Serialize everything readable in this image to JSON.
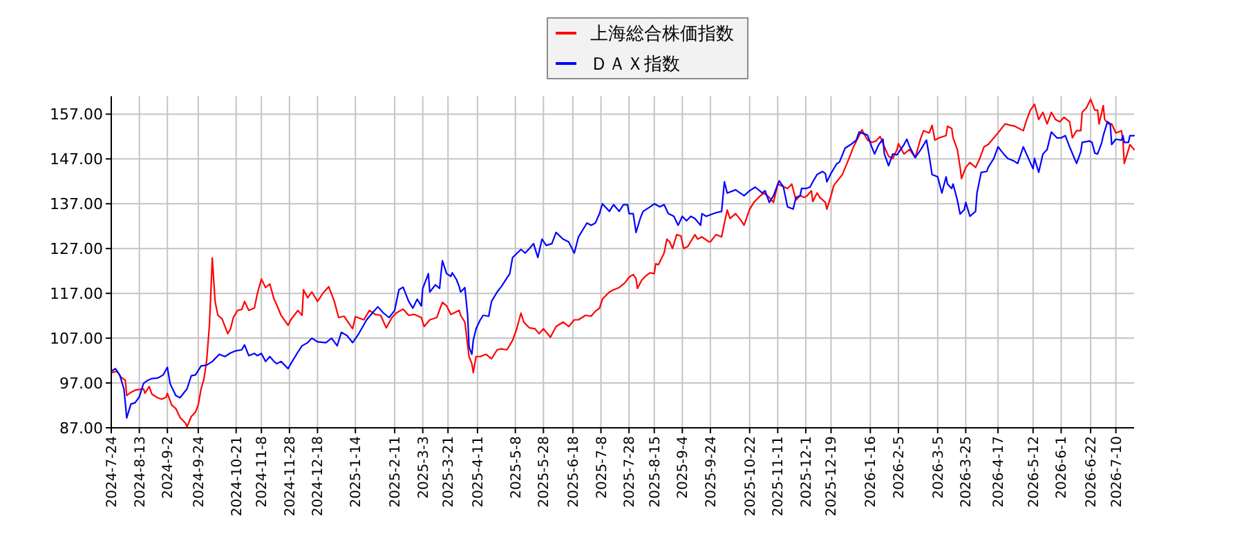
{
  "chart_data": {
    "type": "line",
    "series": [
      {
        "name": "上海総合株価指数",
        "color": "#ff0000",
        "x": [
          "2024-07-24",
          "2024-07-28",
          "2024-07-31",
          "2024-08-03",
          "2024-08-04",
          "2024-08-07",
          "2024-08-10",
          "2024-08-16",
          "2024-08-17",
          "2024-08-20",
          "2024-08-22",
          "2024-08-26",
          "2024-08-29",
          "2024-09-01",
          "2024-09-02",
          "2024-09-05",
          "2024-09-08",
          "2024-09-11",
          "2024-09-15",
          "2024-09-16",
          "2024-09-19",
          "2024-09-22",
          "2024-09-24",
          "2024-09-26",
          "2024-09-28",
          "2024-09-30",
          "2024-10-02",
          "2024-10-04",
          "2024-10-06",
          "2024-10-08",
          "2024-10-11",
          "2024-10-15",
          "2024-10-17",
          "2024-10-19",
          "2024-10-22",
          "2024-10-25",
          "2024-10-27",
          "2024-10-30",
          "2024-11-03",
          "2024-11-05",
          "2024-11-08",
          "2024-11-11",
          "2024-11-14",
          "2024-11-17",
          "2024-11-19",
          "2024-11-22",
          "2024-11-27",
          "2024-11-29",
          "2024-12-04",
          "2024-12-07",
          "2024-12-08",
          "2024-12-11",
          "2024-12-14",
          "2024-12-18",
          "2024-12-22",
          "2024-12-26",
          "2024-12-30",
          "2025-01-02",
          "2025-01-06",
          "2025-01-12",
          "2025-01-14",
          "2025-01-20",
          "2025-01-24",
          "2025-01-28",
          "2025-02-01",
          "2025-02-05",
          "2025-02-09",
          "2025-02-12",
          "2025-02-17",
          "2025-02-21",
          "2025-02-25",
          "2025-03-02",
          "2025-03-04",
          "2025-03-08",
          "2025-03-13",
          "2025-03-17",
          "2025-03-20",
          "2025-03-23",
          "2025-03-29",
          "2025-03-30",
          "2025-04-02",
          "2025-04-04",
          "2025-04-05",
          "2025-04-07",
          "2025-04-08",
          "2025-04-10",
          "2025-04-13",
          "2025-04-17",
          "2025-04-21",
          "2025-04-25",
          "2025-04-28",
          "2025-05-02",
          "2025-05-06",
          "2025-05-09",
          "2025-05-12",
          "2025-05-14",
          "2025-05-18",
          "2025-05-22",
          "2025-05-25",
          "2025-05-28",
          "2025-06-02",
          "2025-06-06",
          "2025-06-11",
          "2025-06-15",
          "2025-06-19",
          "2025-06-22",
          "2025-06-27",
          "2025-07-01",
          "2025-07-04",
          "2025-07-07",
          "2025-07-09",
          "2025-07-14",
          "2025-07-17",
          "2025-07-21",
          "2025-07-25",
          "2025-07-28",
          "2025-07-31",
          "2025-08-02",
          "2025-08-03",
          "2025-08-06",
          "2025-08-09",
          "2025-08-12",
          "2025-08-15",
          "2025-08-16",
          "2025-08-18",
          "2025-08-22",
          "2025-08-24",
          "2025-08-26",
          "2025-08-28",
          "2025-08-31",
          "2025-09-03",
          "2025-09-05",
          "2025-09-08",
          "2025-09-13",
          "2025-09-15",
          "2025-09-18",
          "2025-09-23",
          "2025-09-24",
          "2025-09-28",
          "2025-10-02",
          "2025-10-04",
          "2025-10-06",
          "2025-10-08",
          "2025-10-12",
          "2025-10-16",
          "2025-10-18",
          "2025-10-22",
          "2025-10-25",
          "2025-10-29",
          "2025-11-01",
          "2025-11-05",
          "2025-11-08",
          "2025-11-11",
          "2025-11-15",
          "2025-11-18",
          "2025-11-21",
          "2025-11-24",
          "2025-11-27",
          "2025-11-30",
          "2025-12-02",
          "2025-12-05",
          "2025-12-06",
          "2025-12-09",
          "2025-12-11",
          "2025-12-15",
          "2025-12-16",
          "2025-12-19",
          "2025-12-21",
          "2025-12-27",
          "2025-12-31",
          "2026-01-04",
          "2026-01-08",
          "2026-01-10",
          "2026-01-14",
          "2026-01-17",
          "2026-01-20",
          "2026-01-23",
          "2026-01-26",
          "2026-01-29",
          "2026-02-01",
          "2026-02-04",
          "2026-02-05",
          "2026-02-09",
          "2026-02-13",
          "2026-02-17",
          "2026-02-21",
          "2026-02-23",
          "2026-02-27",
          "2026-03-01",
          "2026-03-03",
          "2026-03-06",
          "2026-03-11",
          "2026-03-12",
          "2026-03-15",
          "2026-03-16",
          "2026-03-19",
          "2026-03-21",
          "2026-03-22",
          "2026-03-25",
          "2026-03-28",
          "2026-04-01",
          "2026-04-04",
          "2026-04-07",
          "2026-04-10",
          "2026-04-14",
          "2026-04-17",
          "2026-04-22",
          "2026-04-26",
          "2026-04-29",
          "2026-05-05",
          "2026-05-07",
          "2026-05-10",
          "2026-05-13",
          "2026-05-16",
          "2026-05-19",
          "2026-05-22",
          "2026-05-25",
          "2026-05-28",
          "2026-05-31",
          "2026-06-03",
          "2026-06-07",
          "2026-06-09",
          "2026-06-12",
          "2026-06-15",
          "2026-06-16",
          "2026-06-19",
          "2026-06-22",
          "2026-06-25",
          "2026-06-27",
          "2026-06-28",
          "2026-07-01",
          "2026-07-02",
          "2026-07-05",
          "2026-07-07",
          "2026-07-10",
          "2026-07-14",
          "2026-07-15",
          "2026-07-16",
          "2026-07-19",
          "2026-07-20",
          "2026-07-23"
        ],
        "values": [
          99.3,
          99.6,
          98.3,
          97.6,
          94.2,
          94.9,
          95.4,
          95.7,
          94.7,
          96.2,
          94.5,
          93.7,
          93.4,
          93.8,
          94.7,
          92.1,
          91.3,
          89.3,
          88.0,
          87.2,
          89.5,
          90.5,
          92.1,
          95.7,
          97.8,
          102.0,
          110.1,
          124.9,
          115.2,
          112.1,
          111.3,
          108.0,
          109.1,
          111.6,
          113.2,
          113.4,
          115.2,
          113.2,
          113.7,
          116.8,
          120.2,
          118.3,
          119.1,
          115.7,
          114.4,
          112.1,
          109.9,
          111.1,
          113.2,
          112.1,
          117.8,
          116.0,
          117.3,
          115.2,
          117.1,
          118.5,
          115.2,
          111.6,
          111.9,
          109.1,
          111.8,
          111.1,
          113.2,
          112.3,
          112.1,
          109.3,
          111.6,
          112.6,
          113.5,
          112.1,
          112.3,
          111.6,
          109.6,
          111.1,
          111.6,
          115.0,
          114.2,
          112.3,
          113.2,
          112.1,
          110.6,
          105.5,
          102.9,
          101.3,
          99.3,
          102.9,
          102.9,
          103.4,
          102.4,
          104.4,
          104.6,
          104.4,
          106.5,
          109.1,
          112.6,
          110.6,
          109.3,
          109.1,
          108.0,
          109.1,
          107.2,
          109.6,
          110.6,
          109.6,
          111.1,
          111.1,
          112.1,
          111.9,
          113.0,
          113.7,
          115.7,
          117.3,
          117.8,
          118.3,
          119.3,
          120.6,
          121.2,
          120.3,
          118.1,
          119.9,
          120.9,
          121.6,
          121.4,
          123.6,
          123.4,
          126.0,
          129.1,
          128.5,
          127.0,
          130.1,
          129.8,
          127.0,
          127.5,
          130.1,
          129.1,
          129.6,
          128.5,
          128.5,
          130.1,
          129.6,
          132.7,
          135.6,
          133.7,
          134.8,
          133.2,
          132.2,
          135.8,
          137.3,
          138.6,
          139.4,
          138.4,
          137.3,
          141.4,
          140.8,
          140.4,
          141.4,
          137.8,
          138.8,
          138.4,
          138.8,
          139.9,
          137.5,
          139.4,
          138.4,
          137.3,
          135.8,
          138.8,
          141.1,
          143.5,
          146.5,
          149.7,
          152.2,
          153.5,
          151.2,
          150.7,
          151.0,
          152.0,
          149.7,
          147.6,
          147.1,
          149.1,
          150.4,
          148.1,
          149.1,
          147.3,
          151.7,
          153.3,
          152.8,
          154.5,
          151.2,
          151.7,
          152.2,
          154.3,
          153.8,
          151.7,
          149.1,
          145.1,
          142.6,
          145.1,
          146.2,
          145.1,
          147.1,
          149.7,
          150.2,
          151.7,
          152.8,
          154.8,
          154.5,
          154.3,
          153.3,
          155.3,
          157.9,
          159.2,
          155.8,
          157.4,
          154.8,
          157.4,
          155.8,
          155.3,
          156.3,
          155.3,
          151.7,
          153.3,
          153.3,
          157.4,
          158.4,
          160.3,
          157.9,
          157.9,
          154.8,
          158.9,
          155.8,
          154.8,
          154.8,
          152.8,
          153.3,
          151.2,
          146.0,
          149.1,
          150.2,
          149.1
        ]
      },
      {
        "name": "ＤＡＸ指数",
        "color": "#0000ff",
        "x": [
          "2024-07-24",
          "2024-07-27",
          "2024-07-30",
          "2024-08-02",
          "2024-08-03",
          "2024-08-04",
          "2024-08-07",
          "2024-08-10",
          "2024-08-13",
          "2024-08-16",
          "2024-08-19",
          "2024-08-22",
          "2024-08-26",
          "2024-08-30",
          "2024-09-02",
          "2024-09-04",
          "2024-09-08",
          "2024-09-11",
          "2024-09-16",
          "2024-09-19",
          "2024-09-22",
          "2024-09-26",
          "2024-09-30",
          "2024-10-04",
          "2024-10-09",
          "2024-10-13",
          "2024-10-17",
          "2024-10-21",
          "2024-10-25",
          "2024-10-27",
          "2024-10-30",
          "2024-11-03",
          "2024-11-05",
          "2024-11-08",
          "2024-11-11",
          "2024-11-14",
          "2024-11-17",
          "2024-11-19",
          "2024-11-22",
          "2024-11-27",
          "2024-11-29",
          "2024-12-04",
          "2024-12-07",
          "2024-12-11",
          "2024-12-14",
          "2024-12-18",
          "2024-12-24",
          "2024-12-28",
          "2025-01-01",
          "2025-01-04",
          "2025-01-08",
          "2025-01-12",
          "2025-01-16",
          "2025-01-22",
          "2025-01-26",
          "2025-01-30",
          "2025-02-03",
          "2025-02-07",
          "2025-02-11",
          "2025-02-14",
          "2025-02-17",
          "2025-02-21",
          "2025-02-24",
          "2025-02-27",
          "2025-03-02",
          "2025-03-03",
          "2025-03-07",
          "2025-03-08",
          "2025-03-12",
          "2025-03-15",
          "2025-03-16",
          "2025-03-17",
          "2025-03-20",
          "2025-03-23",
          "2025-03-24",
          "2025-03-27",
          "2025-03-29",
          "2025-03-30",
          "2025-04-02",
          "2025-04-04",
          "2025-04-05",
          "2025-04-07",
          "2025-04-08",
          "2025-04-10",
          "2025-04-13",
          "2025-04-15",
          "2025-04-19",
          "2025-04-21",
          "2025-04-25",
          "2025-04-28",
          "2025-05-04",
          "2025-05-06",
          "2025-05-12",
          "2025-05-15",
          "2025-05-18",
          "2025-05-21",
          "2025-05-24",
          "2025-05-27",
          "2025-05-30",
          "2025-06-03",
          "2025-06-06",
          "2025-06-11",
          "2025-06-15",
          "2025-06-19",
          "2025-06-22",
          "2025-06-28",
          "2025-07-01",
          "2025-07-04",
          "2025-07-07",
          "2025-07-09",
          "2025-07-14",
          "2025-07-17",
          "2025-07-21",
          "2025-07-24",
          "2025-07-27",
          "2025-07-28",
          "2025-07-31",
          "2025-08-02",
          "2025-08-05",
          "2025-08-07",
          "2025-08-12",
          "2025-08-15",
          "2025-08-19",
          "2025-08-22",
          "2025-08-25",
          "2025-08-29",
          "2025-09-01",
          "2025-09-04",
          "2025-09-07",
          "2025-09-10",
          "2025-09-13",
          "2025-09-17",
          "2025-09-18",
          "2025-09-21",
          "2025-09-28",
          "2025-10-02",
          "2025-10-04",
          "2025-10-06",
          "2025-10-12",
          "2025-10-18",
          "2025-10-22",
          "2025-10-26",
          "2025-10-31",
          "2025-11-02",
          "2025-11-05",
          "2025-11-08",
          "2025-11-12",
          "2025-11-15",
          "2025-11-18",
          "2025-11-22",
          "2025-11-24",
          "2025-11-27",
          "2025-11-28",
          "2025-12-01",
          "2025-12-04",
          "2025-12-06",
          "2025-12-09",
          "2025-12-13",
          "2025-12-15",
          "2025-12-16",
          "2025-12-19",
          "2025-12-23",
          "2025-12-25",
          "2025-12-29",
          "2026-01-02",
          "2026-01-06",
          "2026-01-08",
          "2026-01-14",
          "2026-01-17",
          "2026-01-19",
          "2026-01-22",
          "2026-01-25",
          "2026-01-26",
          "2026-01-29",
          "2026-02-01",
          "2026-02-04",
          "2026-02-09",
          "2026-02-11",
          "2026-02-13",
          "2026-02-17",
          "2026-02-21",
          "2026-02-25",
          "2026-02-27",
          "2026-03-01",
          "2026-03-05",
          "2026-03-08",
          "2026-03-11",
          "2026-03-12",
          "2026-03-15",
          "2026-03-16",
          "2026-03-19",
          "2026-03-21",
          "2026-03-24",
          "2026-03-25",
          "2026-03-28",
          "2026-04-01",
          "2026-04-02",
          "2026-04-05",
          "2026-04-09",
          "2026-04-10",
          "2026-04-14",
          "2026-04-17",
          "2026-04-21",
          "2026-04-24",
          "2026-04-28",
          "2026-05-01",
          "2026-05-05",
          "2026-05-08",
          "2026-05-12",
          "2026-05-13",
          "2026-05-16",
          "2026-05-19",
          "2026-05-22",
          "2026-05-25",
          "2026-05-29",
          "2026-06-01",
          "2026-06-04",
          "2026-06-07",
          "2026-06-12",
          "2026-06-15",
          "2026-06-16",
          "2026-06-21",
          "2026-06-23",
          "2026-06-25",
          "2026-06-27",
          "2026-06-30",
          "2026-07-01",
          "2026-07-04",
          "2026-07-06",
          "2026-07-07",
          "2026-07-10",
          "2026-07-14",
          "2026-07-15",
          "2026-07-16",
          "2026-07-19",
          "2026-07-20",
          "2026-07-23"
        ],
        "values": [
          99.6,
          100.2,
          98.8,
          95.7,
          92.6,
          89.2,
          92.3,
          92.6,
          93.9,
          96.9,
          97.6,
          98.0,
          98.1,
          98.8,
          100.5,
          96.8,
          94.2,
          93.7,
          95.7,
          98.6,
          98.8,
          100.8,
          101.0,
          101.8,
          103.4,
          102.9,
          103.7,
          104.2,
          104.4,
          105.5,
          103.1,
          103.6,
          103.1,
          103.6,
          101.8,
          102.9,
          101.8,
          101.3,
          101.8,
          100.2,
          101.3,
          103.9,
          105.3,
          106.0,
          107.0,
          106.2,
          106.0,
          107.0,
          105.3,
          108.3,
          107.6,
          106.0,
          107.8,
          111.1,
          112.6,
          114.0,
          112.6,
          111.6,
          113.2,
          117.8,
          118.4,
          115.2,
          113.7,
          115.7,
          114.2,
          118.1,
          121.4,
          117.3,
          118.9,
          118.1,
          121.4,
          124.3,
          121.4,
          120.8,
          121.6,
          120.1,
          118.5,
          117.3,
          118.3,
          112.1,
          105.0,
          103.4,
          106.5,
          109.1,
          111.1,
          112.1,
          111.9,
          115.2,
          117.3,
          118.5,
          121.4,
          125.0,
          126.8,
          126.0,
          127.0,
          128.1,
          125.0,
          129.1,
          127.7,
          128.1,
          130.6,
          129.1,
          128.5,
          126.0,
          129.6,
          132.7,
          132.2,
          132.7,
          134.8,
          137.0,
          135.3,
          136.8,
          135.3,
          136.8,
          136.8,
          134.8,
          134.8,
          130.6,
          133.7,
          135.3,
          136.3,
          137.0,
          136.3,
          136.8,
          134.8,
          134.2,
          132.2,
          134.2,
          133.2,
          134.2,
          133.7,
          132.2,
          134.8,
          134.2,
          135.0,
          135.3,
          141.9,
          139.4,
          140.1,
          138.8,
          139.9,
          140.7,
          139.4,
          139.9,
          137.3,
          138.8,
          142.1,
          140.8,
          136.3,
          135.8,
          138.4,
          138.8,
          140.4,
          140.4,
          140.7,
          141.9,
          143.5,
          144.2,
          143.7,
          141.9,
          143.8,
          145.9,
          146.3,
          149.4,
          150.2,
          151.2,
          153.0,
          152.3,
          149.7,
          148.1,
          150.2,
          151.4,
          148.1,
          145.5,
          148.1,
          147.9,
          150.2,
          151.4,
          149.7,
          147.3,
          149.1,
          151.2,
          147.6,
          143.5,
          143.0,
          139.4,
          143.0,
          141.4,
          140.4,
          141.4,
          137.8,
          134.7,
          135.7,
          137.3,
          134.2,
          135.3,
          139.4,
          144.0,
          144.2,
          145.1,
          147.1,
          149.7,
          148.1,
          147.1,
          146.6,
          146.0,
          149.7,
          147.6,
          144.8,
          147.1,
          144.0,
          148.1,
          149.1,
          153.0,
          151.7,
          151.7,
          152.2,
          149.7,
          146.0,
          148.6,
          150.7,
          151.0,
          150.7,
          148.3,
          148.1,
          150.7,
          152.2,
          155.3,
          154.8,
          150.2,
          151.4,
          151.2,
          152.2,
          150.7,
          150.7,
          152.2,
          152.2
        ]
      }
    ],
    "xlim": [
      "2024-07-24",
      "2026-07-23"
    ],
    "ylim": [
      87,
      161
    ],
    "xticks": [
      {
        "value": "2024-07-24",
        "label": "2024-7-24"
      },
      {
        "value": "2024-08-13",
        "label": "2024-8-13"
      },
      {
        "value": "2024-09-02",
        "label": "2024-9-2"
      },
      {
        "value": "2024-09-24",
        "label": "2024-9-24"
      },
      {
        "value": "2024-10-21",
        "label": "2024-10-21"
      },
      {
        "value": "2024-11-08",
        "label": "2024-11-8"
      },
      {
        "value": "2024-11-28",
        "label": "2024-11-28"
      },
      {
        "value": "2024-12-18",
        "label": "2024-12-18"
      },
      {
        "value": "2025-01-14",
        "label": "2025-1-14"
      },
      {
        "value": "2025-02-11",
        "label": "2025-2-11"
      },
      {
        "value": "2025-03-03",
        "label": "2025-3-3"
      },
      {
        "value": "2025-03-21",
        "label": "2025-3-21"
      },
      {
        "value": "2025-04-11",
        "label": "2025-4-11"
      },
      {
        "value": "2025-05-08",
        "label": "2025-5-8"
      },
      {
        "value": "2025-05-28",
        "label": "2025-5-28"
      },
      {
        "value": "2025-06-18",
        "label": "2025-6-18"
      },
      {
        "value": "2025-07-08",
        "label": "2025-7-8"
      },
      {
        "value": "2025-07-28",
        "label": "2025-7-28"
      },
      {
        "value": "2025-08-15",
        "label": "2025-8-15"
      },
      {
        "value": "2025-09-04",
        "label": "2025-9-4"
      },
      {
        "value": "2025-09-24",
        "label": "2025-9-24"
      },
      {
        "value": "2025-10-22",
        "label": "2025-10-22"
      },
      {
        "value": "2025-11-11",
        "label": "2025-11-11"
      },
      {
        "value": "2025-12-01",
        "label": "2025-12-1"
      },
      {
        "value": "2025-12-19",
        "label": "2025-12-19"
      },
      {
        "value": "2026-01-16",
        "label": "2026-1-16"
      },
      {
        "value": "2026-02-05",
        "label": "2026-2-5"
      },
      {
        "value": "2026-03-05",
        "label": "2026-3-5"
      },
      {
        "value": "2026-03-25",
        "label": "2026-3-25"
      },
      {
        "value": "2026-04-17",
        "label": "2026-4-17"
      },
      {
        "value": "2026-05-12",
        "label": "2026-5-12"
      },
      {
        "value": "2026-06-01",
        "label": "2026-6-1"
      },
      {
        "value": "2026-06-22",
        "label": "2026-6-22"
      },
      {
        "value": "2026-07-10",
        "label": "2026-7-10"
      }
    ],
    "yticks": [
      {
        "value": 87,
        "label": "87.00"
      },
      {
        "value": 97,
        "label": "97.00"
      },
      {
        "value": 107,
        "label": "107.00"
      },
      {
        "value": 117,
        "label": "117.00"
      },
      {
        "value": 127,
        "label": "127.00"
      },
      {
        "value": 137,
        "label": "137.00"
      },
      {
        "value": 147,
        "label": "147.00"
      },
      {
        "value": 157,
        "label": "157.00"
      }
    ],
    "grid": true,
    "legend": "top"
  }
}
